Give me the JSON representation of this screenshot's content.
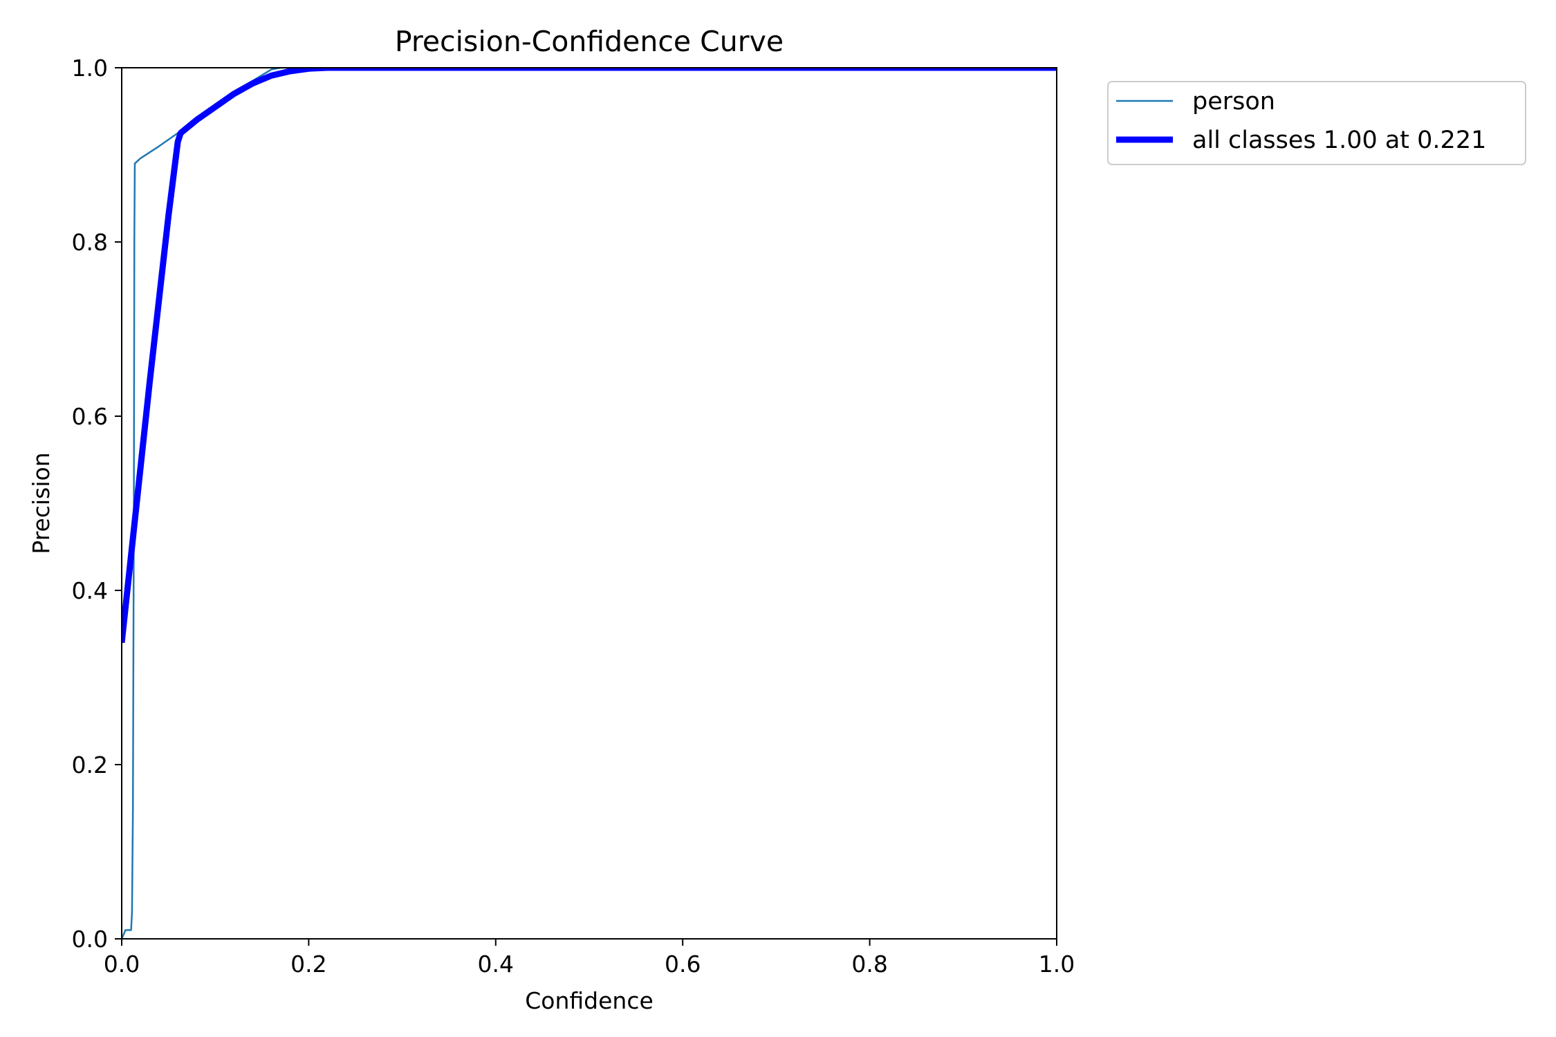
{
  "chart_data": {
    "type": "line",
    "title": "Precision-Confidence Curve",
    "xlabel": "Confidence",
    "ylabel": "Precision",
    "xlim": [
      0,
      1
    ],
    "ylim": [
      0,
      1
    ],
    "xticks": [
      "0.0",
      "0.2",
      "0.4",
      "0.6",
      "0.8",
      "1.0"
    ],
    "yticks": [
      "0.0",
      "0.2",
      "0.4",
      "0.6",
      "0.8",
      "1.0"
    ],
    "grid": false,
    "legend_position": "outside-top-right",
    "series": [
      {
        "name": "person",
        "color": "#1f77b4",
        "x": [
          0.0,
          0.002,
          0.004,
          0.006,
          0.008,
          0.01,
          0.011,
          0.012,
          0.013,
          0.0135,
          0.014,
          0.02,
          0.04,
          0.06,
          0.08,
          0.1,
          0.12,
          0.14,
          0.16,
          0.17,
          0.18,
          0.2,
          0.3,
          0.5,
          0.7,
          0.9,
          1.0
        ],
        "y": [
          0.0,
          0.005,
          0.01,
          0.01,
          0.01,
          0.01,
          0.03,
          0.15,
          0.5,
          0.8,
          0.89,
          0.896,
          0.91,
          0.925,
          0.94,
          0.955,
          0.97,
          0.985,
          0.998,
          1.0,
          1.0,
          1.0,
          1.0,
          1.0,
          1.0,
          1.0,
          1.0
        ]
      },
      {
        "name": "all classes 1.00 at 0.221",
        "color": "#0000ff",
        "x": [
          0.0,
          0.01,
          0.02,
          0.03,
          0.04,
          0.05,
          0.06,
          0.063,
          0.08,
          0.1,
          0.12,
          0.14,
          0.16,
          0.18,
          0.2,
          0.22,
          0.25,
          0.3,
          0.5,
          0.7,
          0.9,
          1.0
        ],
        "y": [
          0.34,
          0.44,
          0.54,
          0.64,
          0.735,
          0.83,
          0.915,
          0.925,
          0.94,
          0.955,
          0.97,
          0.982,
          0.991,
          0.996,
          0.999,
          1.0,
          1.0,
          1.0,
          1.0,
          1.0,
          1.0,
          1.0
        ]
      }
    ]
  }
}
